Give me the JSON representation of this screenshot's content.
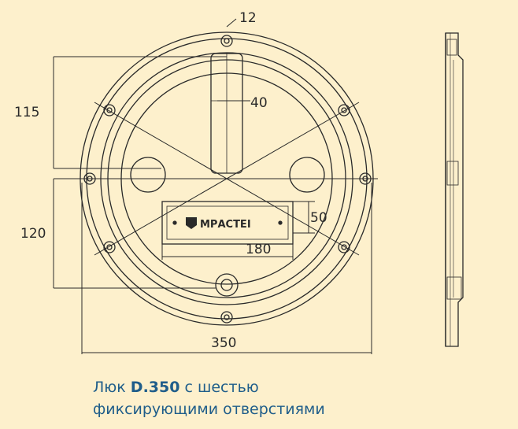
{
  "dimensions": {
    "hole_diameter": "12",
    "slot_height": "40",
    "top_offset": "115",
    "bottom_offset": "120",
    "plate_height": "50",
    "plate_width": "180",
    "outer_diameter": "350"
  },
  "nameplate": {
    "logo_text": "МРАСТЕІ"
  },
  "caption": {
    "prefix": "Люк ",
    "model": "D.350",
    "line1_rest": " с шестью",
    "line2": "фиксирующими отверстиями"
  },
  "colors": {
    "background": "#fdf0cc",
    "lines": "#2a2a2a",
    "caption": "#1f5d8a"
  }
}
